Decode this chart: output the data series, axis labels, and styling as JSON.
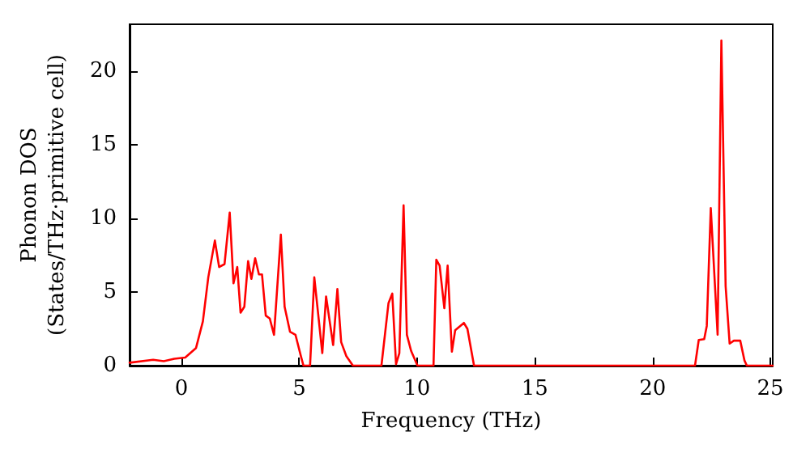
{
  "chart_data": {
    "type": "line",
    "xlabel": "Frequency (THz)",
    "ylabel": "Phonon DOS\n(States/THz·primitive cell)",
    "xlim": [
      -2.2,
      25.1
    ],
    "xticks": [
      0,
      5,
      10,
      15,
      20,
      25
    ],
    "ylim": [
      0,
      23.2
    ],
    "yticks": [
      0,
      5,
      10,
      15,
      20
    ],
    "grid": false,
    "marker": "none",
    "line_style": "solid",
    "series": [
      {
        "color": "#ff0000",
        "x": [
          -2.2,
          -1.2,
          -0.75,
          -0.3,
          0.16,
          0.62,
          0.91,
          1.14,
          1.42,
          1.6,
          1.83,
          2.05,
          2.21,
          2.37,
          2.51,
          2.67,
          2.83,
          2.97,
          3.13,
          3.29,
          3.42,
          3.58,
          3.75,
          3.93,
          4.22,
          4.38,
          4.61,
          4.84,
          5.07,
          5.18,
          5.46,
          5.64,
          5.98,
          6.14,
          6.44,
          6.62,
          6.78,
          7.0,
          7.28,
          8.49,
          8.79,
          8.95,
          9.11,
          9.25,
          9.43,
          9.57,
          9.75,
          10.02,
          10.7,
          10.82,
          10.96,
          11.16,
          11.3,
          11.48,
          11.62,
          11.99,
          12.14,
          12.42,
          21.8,
          21.96,
          22.19,
          22.3,
          22.47,
          22.76,
          22.92,
          23.1,
          23.27,
          23.45,
          23.72,
          23.9,
          24.0,
          25.1
        ],
        "values": [
          0.2,
          0.4,
          0.3,
          0.47,
          0.55,
          1.2,
          3.0,
          6.0,
          8.5,
          6.7,
          6.9,
          10.4,
          5.6,
          6.7,
          3.6,
          4.0,
          7.1,
          5.9,
          7.3,
          6.2,
          6.2,
          3.4,
          3.2,
          2.1,
          8.9,
          4.0,
          2.3,
          2.1,
          0.65,
          0,
          0,
          6.0,
          0.85,
          4.7,
          1.4,
          5.2,
          1.6,
          0.65,
          0,
          0,
          4.25,
          4.9,
          0.1,
          0.85,
          10.9,
          2.1,
          1.0,
          0,
          0,
          7.2,
          6.8,
          3.9,
          6.8,
          0.95,
          2.4,
          2.9,
          2.5,
          0,
          0,
          1.75,
          1.8,
          2.7,
          10.7,
          2.1,
          22.1,
          5.4,
          1.5,
          1.7,
          1.7,
          0.35,
          0,
          0
        ]
      }
    ]
  }
}
